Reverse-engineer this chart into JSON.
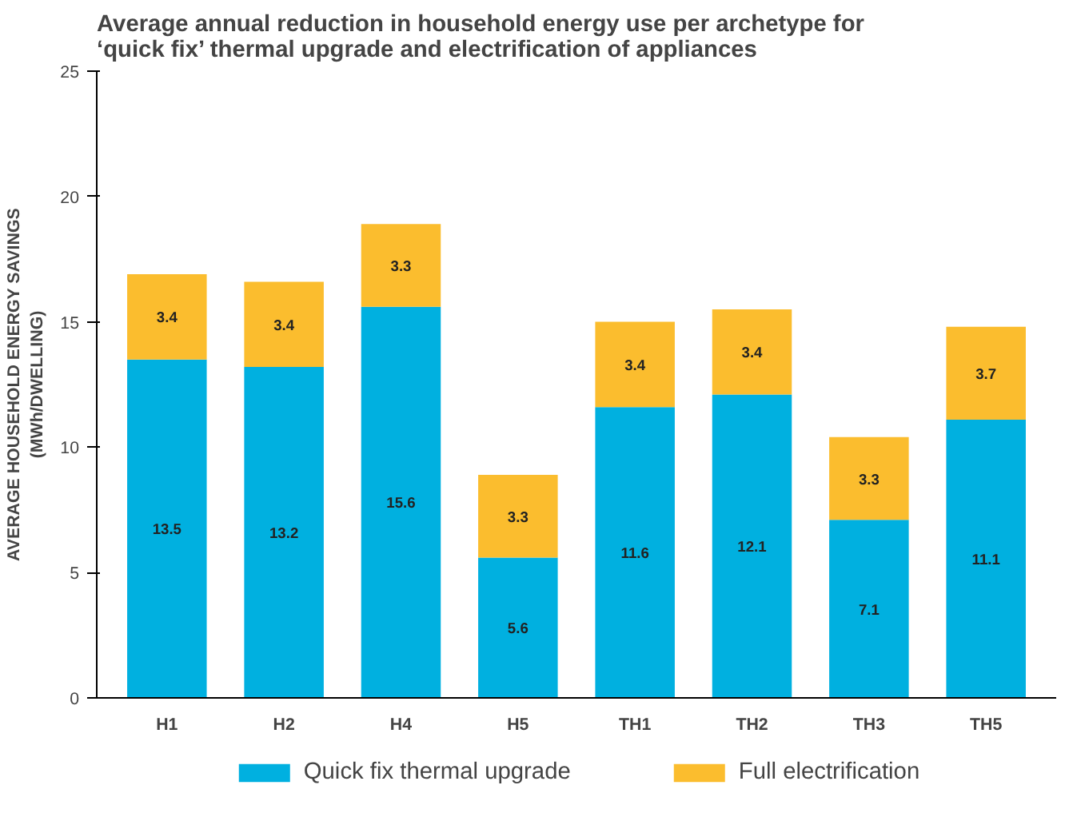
{
  "chart_data": {
    "type": "bar",
    "title": "Average annual reduction in household energy use per archetype for ‘quick fix’ thermal upgrade and electrification of appliances",
    "ylabel": "AVERAGE HOUSEHOLD ENERGY SAVINGS (MWh/DWELLING)",
    "categories": [
      "H1",
      "H2",
      "H4",
      "H5",
      "TH1",
      "TH2",
      "TH3",
      "TH5"
    ],
    "stacked": true,
    "data_labels": true,
    "legend": "bottom",
    "grid": false,
    "ylim": [
      0,
      25
    ],
    "yticks": [
      0,
      5,
      10,
      15,
      20,
      25
    ],
    "series": [
      {
        "name": "Quick fix thermal upgrade",
        "color": "#00b0e0",
        "values": [
          13.5,
          13.2,
          15.6,
          5.6,
          11.6,
          12.1,
          7.1,
          11.1
        ]
      },
      {
        "name": "Full electrification",
        "color": "#fbbd2e",
        "values": [
          3.4,
          3.4,
          3.3,
          3.3,
          3.4,
          3.4,
          3.3,
          3.7
        ]
      }
    ]
  }
}
